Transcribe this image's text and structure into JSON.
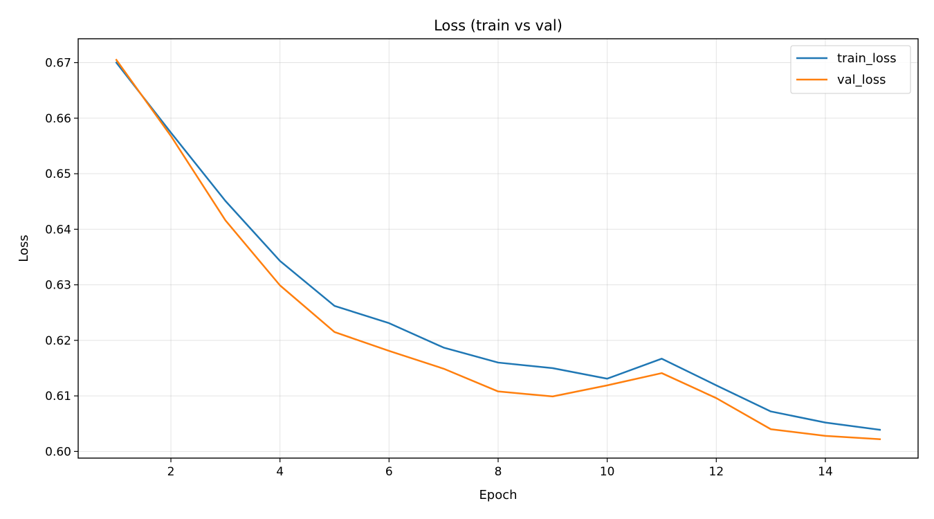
{
  "chart_data": {
    "type": "line",
    "title": "Loss (train vs val)",
    "xlabel": "Epoch",
    "ylabel": "Loss",
    "xlim": [
      0.3,
      15.7
    ],
    "ylim": [
      0.5988,
      0.6743
    ],
    "xticks": [
      2,
      4,
      6,
      8,
      10,
      12,
      14
    ],
    "yticks": [
      0.6,
      0.61,
      0.62,
      0.63,
      0.64,
      0.65,
      0.66,
      0.67
    ],
    "ytick_labels": [
      "0.60",
      "0.61",
      "0.62",
      "0.63",
      "0.64",
      "0.65",
      "0.66",
      "0.67"
    ],
    "grid": true,
    "legend_position": "top-right",
    "x": [
      1,
      2,
      3,
      4,
      5,
      6,
      7,
      8,
      9,
      10,
      11,
      12,
      13,
      14,
      15
    ],
    "series": [
      {
        "name": "train_loss",
        "color": "#1f77b4",
        "values": [
          0.67,
          0.6574,
          0.6451,
          0.6343,
          0.6262,
          0.6231,
          0.6187,
          0.616,
          0.615,
          0.6131,
          0.6167,
          0.6119,
          0.6072,
          0.6052,
          0.6039
        ]
      },
      {
        "name": "val_loss",
        "color": "#ff7f0e",
        "values": [
          0.6705,
          0.6568,
          0.6416,
          0.6299,
          0.6215,
          0.6181,
          0.6149,
          0.6108,
          0.6099,
          0.6119,
          0.6141,
          0.6096,
          0.604,
          0.6028,
          0.6022
        ]
      }
    ]
  }
}
